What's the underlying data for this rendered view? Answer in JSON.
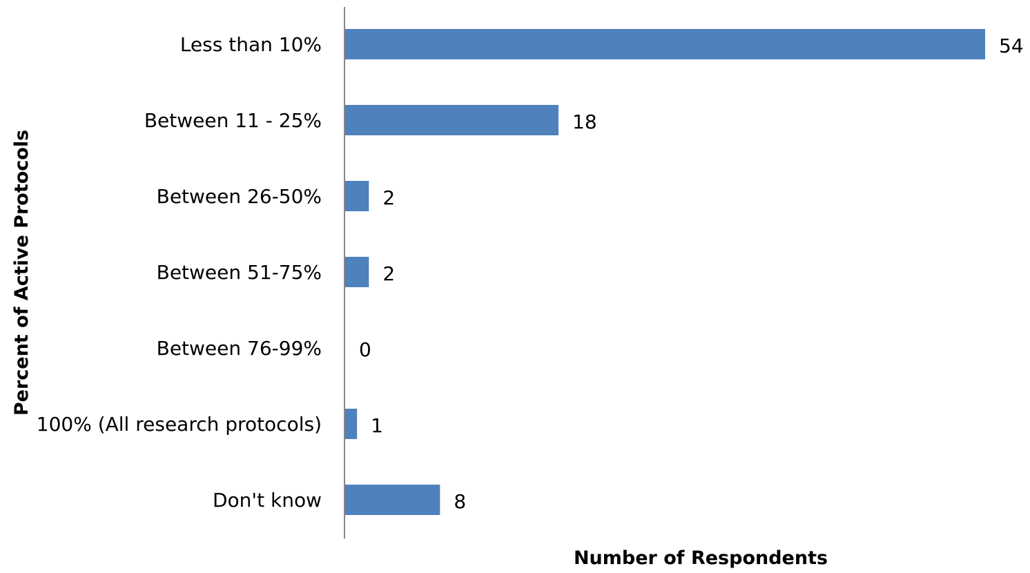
{
  "chart_data": {
    "type": "bar",
    "orientation": "horizontal",
    "categories": [
      "Less than 10%",
      "Between 11 - 25%",
      "Between 26-50%",
      "Between 51-75%",
      "Between 76-99%",
      "100% (All research protocols)",
      "Don't know"
    ],
    "values": [
      54,
      18,
      2,
      2,
      0,
      1,
      8
    ],
    "xlim": [
      0,
      54
    ],
    "xlabel": "Number of Respondents",
    "ylabel": "Percent of Active Protocols",
    "data_labels": true,
    "gridlines": false,
    "legend": "none",
    "bar_color": "#4f81bd"
  }
}
